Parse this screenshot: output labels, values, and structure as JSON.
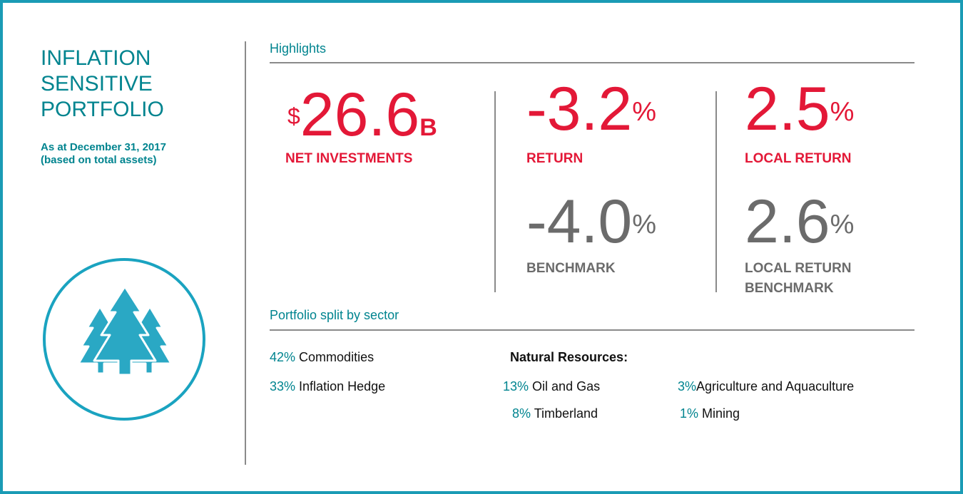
{
  "sidebar": {
    "title_lines": [
      "INFLATION",
      "SENSITIVE",
      "PORTFOLIO"
    ],
    "subtitle_lines": [
      "As at December 31, 2017",
      "(based on total assets)"
    ]
  },
  "highlights": {
    "heading": "Highlights",
    "stats": [
      {
        "prefix": "$",
        "value": "26.6",
        "suffix": "B",
        "label_lines": [
          "NET INVESTMENTS"
        ]
      },
      {
        "value": "-3.2",
        "suffix": "%",
        "label_lines": [
          "RETURN"
        ]
      },
      {
        "value": "2.5",
        "suffix": "%",
        "label_lines": [
          "LOCAL RETURN"
        ]
      },
      {
        "value": "-4.0",
        "suffix": "%",
        "label_lines": [
          "BENCHMARK"
        ]
      },
      {
        "value": "2.6",
        "suffix": "%",
        "label_lines": [
          "LOCAL RETURN",
          "BENCHMARK"
        ]
      }
    ]
  },
  "sector_split": {
    "heading": "Portfolio split by sector",
    "items": [
      {
        "percent": "42%",
        "name": "Commodities"
      },
      {
        "percent": "33%",
        "name": "Inflation Hedge"
      }
    ],
    "natural_resources": {
      "heading": "Natural Resources:",
      "items": [
        {
          "percent": "13%",
          "name": "Oil and Gas"
        },
        {
          "percent": "8%",
          "name": "Timberland"
        },
        {
          "percent": "3%",
          "name": "Agriculture and Aquaculture"
        },
        {
          "percent": "1%",
          "name": "Mining"
        }
      ]
    }
  }
}
